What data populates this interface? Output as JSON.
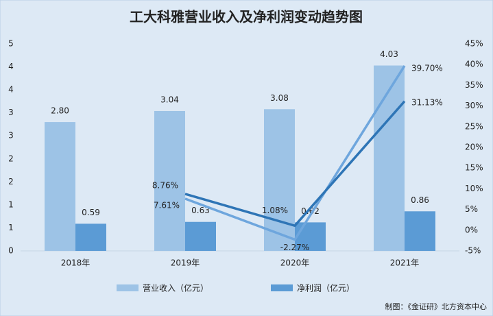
{
  "chart_data": {
    "type": "bar",
    "title": "工大科雅营业收入及净利润变动趋势图",
    "categories": [
      "2018年",
      "2019年",
      "2020年",
      "2021年"
    ],
    "series": [
      {
        "name": "营业收入（亿元）",
        "type": "bar",
        "color": "#9dc3e6",
        "values": [
          2.8,
          3.04,
          3.08,
          4.03
        ],
        "value_labels": [
          "2.80",
          "3.04",
          "3.08",
          "4.03"
        ]
      },
      {
        "name": "净利润（亿元）",
        "type": "bar",
        "color": "#5b9bd5",
        "values": [
          0.59,
          0.63,
          0.62,
          0.86
        ]
      },
      {
        "type": "line",
        "axis": "y2",
        "color": "#6ea6dd",
        "values": [
          null,
          7.61,
          -2.27,
          39.7
        ],
        "value_labels": [
          null,
          "7.61%",
          "-2.27%",
          "39.70%"
        ]
      },
      {
        "type": "line",
        "axis": "y2",
        "color": "#2e75b6",
        "values": [
          null,
          8.76,
          1.08,
          31.13
        ],
        "value_labels": [
          null,
          "8.76%",
          "1.08%",
          "31.13%"
        ]
      }
    ],
    "ylim": [
      0,
      4.5
    ],
    "yticks": [
      0,
      {
        "value": 0.5,
        "label": "1"
      },
      1,
      {
        "value": 1.5,
        "label": "2"
      },
      2,
      {
        "value": 2.5,
        "label": "3"
      },
      3,
      {
        "value": 3.5,
        "label": "4"
      },
      4,
      {
        "value": 4.5,
        "label": "5"
      }
    ],
    "y2lim": [
      -5,
      45
    ],
    "y2ticks": [
      {
        "value": -5,
        "label": "-5%"
      },
      {
        "value": 0,
        "label": "0%"
      },
      {
        "value": 5,
        "label": "5%"
      },
      {
        "value": 10,
        "label": "10%"
      },
      {
        "value": 15,
        "label": "15%"
      },
      {
        "value": 20,
        "label": "20%"
      },
      {
        "value": 25,
        "label": "25%"
      },
      {
        "value": 30,
        "label": "30%"
      },
      {
        "value": 35,
        "label": "35%"
      },
      {
        "value": 40,
        "label": "40%"
      },
      {
        "value": 45,
        "label": "45%"
      }
    ],
    "grid": false,
    "source": "制图：《金证研》北方资本中心"
  }
}
